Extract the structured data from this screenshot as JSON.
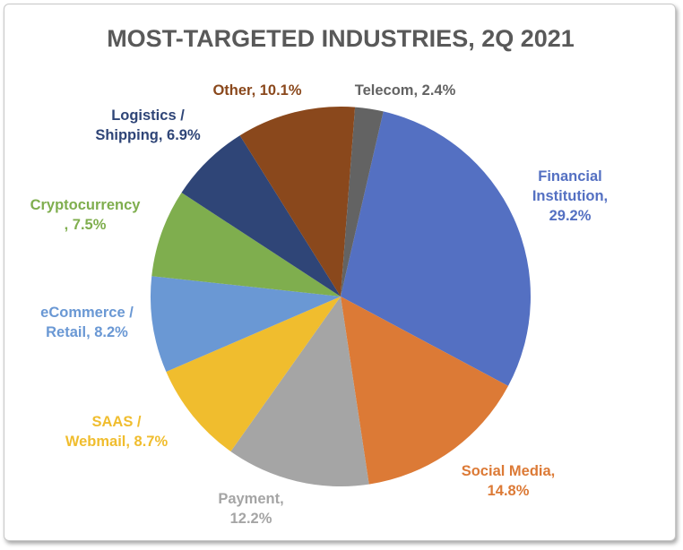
{
  "chart_data": {
    "type": "pie",
    "title": "MOST-TARGETED INDUSTRIES, 2Q 2021",
    "start_angle_deg": 13,
    "slices": [
      {
        "label": [
          "Financial",
          "Institution,",
          "29.2%"
        ],
        "value": 29.2,
        "color": "#5470c2"
      },
      {
        "label": [
          "Social Media,",
          "14.8%"
        ],
        "value": 14.8,
        "color": "#dc7a36"
      },
      {
        "label": [
          "Payment,",
          "12.2%"
        ],
        "value": 12.2,
        "color": "#a5a5a5"
      },
      {
        "label": [
          "SAAS /",
          "Webmail, 8.7%"
        ],
        "value": 8.7,
        "color": "#f0bd2e"
      },
      {
        "label": [
          "eCommerce /",
          "Retail, 8.2%"
        ],
        "value": 8.2,
        "color": "#6a98d4"
      },
      {
        "label": [
          "Cryptocurrency",
          ", 7.5%"
        ],
        "value": 7.5,
        "color": "#7fae4e"
      },
      {
        "label": [
          "Logistics /",
          "Shipping, 6.9%"
        ],
        "value": 6.9,
        "color": "#2f4577"
      },
      {
        "label": [
          "Other, 10.1%"
        ],
        "value": 10.1,
        "color": "#8a481c"
      },
      {
        "label": [
          "Telecom, 2.4%"
        ],
        "value": 2.4,
        "color": "#636363"
      }
    ]
  }
}
